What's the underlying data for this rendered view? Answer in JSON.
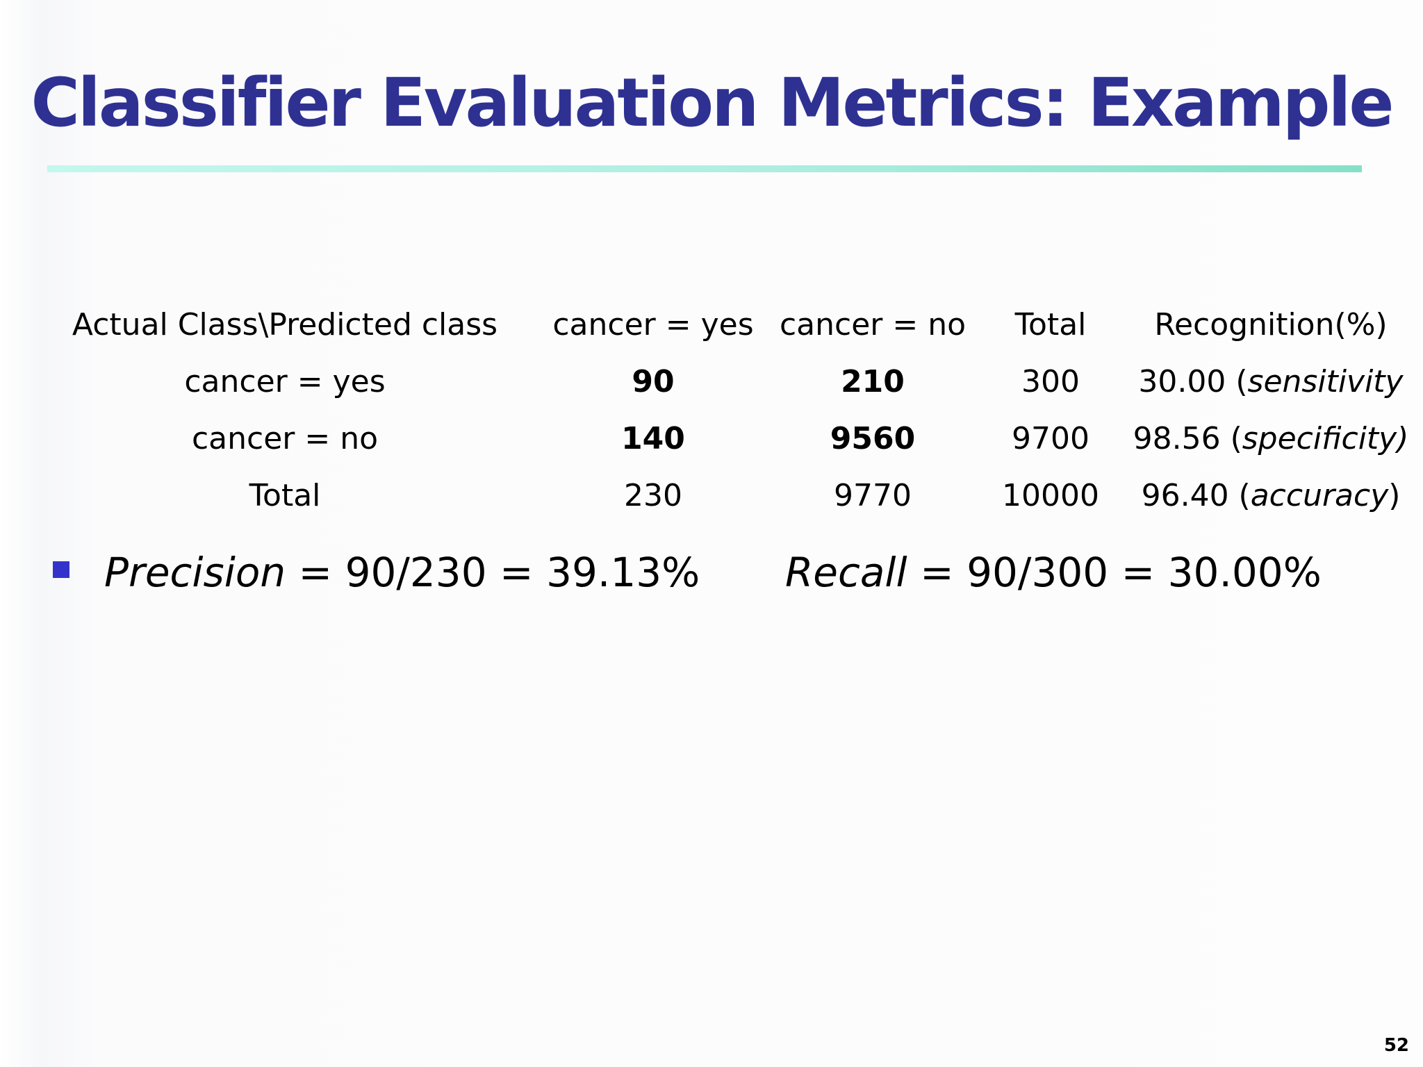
{
  "slide": {
    "title": "Classifier Evaluation Metrics: Example",
    "page_number": "52",
    "colors": {
      "title": "#2e3192",
      "rule": "#aeeee0",
      "bullet": "#3333cc"
    }
  },
  "table": {
    "header": {
      "corner": "Actual Class\\Predicted class",
      "col1": "cancer = yes",
      "col2": "cancer = no",
      "col3": "Total",
      "col4": "Recognition(%)"
    },
    "rows": [
      {
        "label": "cancer = yes",
        "tp_or_fp": "90",
        "fn_or_tn": "210",
        "total": "300",
        "recognition_value": "30.00",
        "recognition_open": " (",
        "recognition_term": "sensitivity",
        "recognition_close": ""
      },
      {
        "label": "cancer = no",
        "tp_or_fp": "140",
        "fn_or_tn": "9560",
        "total": "9700",
        "recognition_value": "98.56",
        "recognition_open": " (",
        "recognition_term": "specificity)",
        "recognition_close": ""
      },
      {
        "label": "Total",
        "tp_or_fp": "230",
        "fn_or_tn": "9770",
        "total": "10000",
        "recognition_value": "96.40",
        "recognition_open": " (",
        "recognition_term": "accuracy",
        "recognition_close": ")"
      }
    ]
  },
  "formulas": {
    "precision": {
      "term": "Precision",
      "expression": " = 90/230 = 39.13%"
    },
    "recall": {
      "term": "Recall",
      "expression": " = 90/300 = 30.00%"
    }
  }
}
